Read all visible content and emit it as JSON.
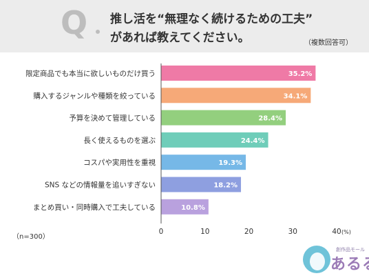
{
  "header": {
    "q_mark": "Q",
    "title_line1": "推し活を“無理なく続けるための工夫”",
    "title_line2": "があれば教えてください。",
    "note": "（複数回答可）"
  },
  "sample_size": "（n=300）",
  "logo": {
    "sub_text": "創作品モール",
    "main_text": "あるる"
  },
  "chart_data": {
    "type": "bar",
    "orientation": "horizontal",
    "categories": [
      "限定商品でも本当に欲しいものだけ買う",
      "購入するジャンルや種類を絞っている",
      "予算を決めて管理している",
      "長く使えるものを選ぶ",
      "コスパや実用性を重視",
      "SNS などの情報量を追いすぎない",
      "まとめ買い・同時購入で工夫している"
    ],
    "values": [
      35.2,
      34.1,
      28.4,
      24.4,
      19.3,
      18.2,
      10.8
    ],
    "value_labels": [
      "35.2%",
      "34.1%",
      "28.4%",
      "24.4%",
      "19.3%",
      "18.2%",
      "10.8%"
    ],
    "colors": [
      "#ef7aa6",
      "#f6a978",
      "#93cf7e",
      "#6fcdb9",
      "#76b8e7",
      "#8e9fe0",
      "#b9a1de"
    ],
    "xlim": [
      0,
      40
    ],
    "xticks": [
      "0",
      "10",
      "20",
      "30",
      "40"
    ],
    "x_unit": "(%)",
    "grid": false
  }
}
